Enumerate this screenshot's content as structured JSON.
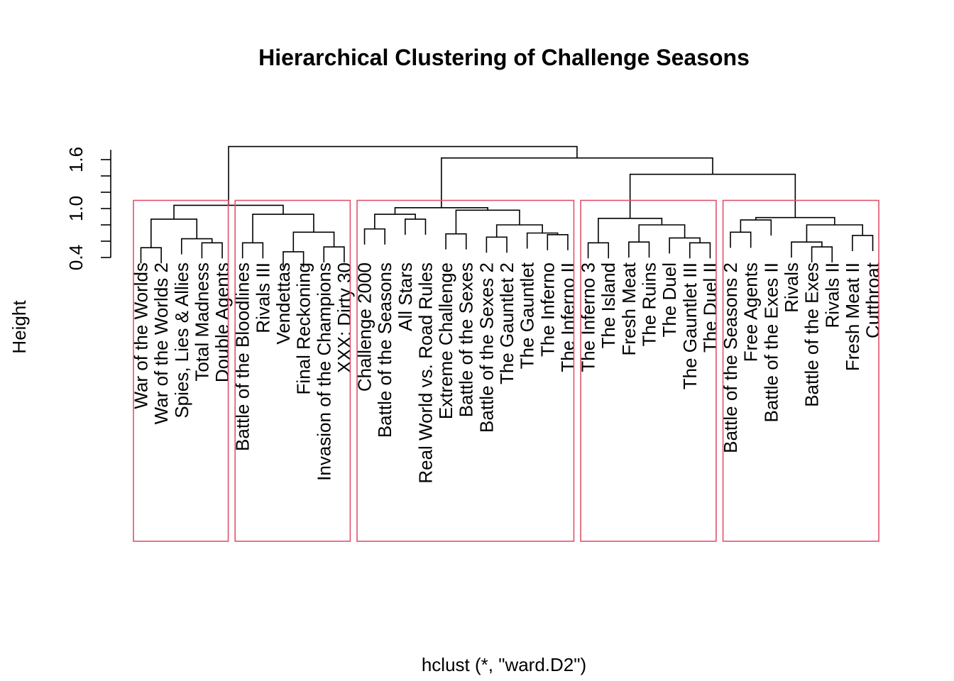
{
  "chart_data": {
    "type": "dendrogram",
    "title": "Hierarchical Clustering of Challenge Seasons",
    "ylabel": "Height",
    "xlabel": "hclust (*, \"ward.D2\")",
    "ylim": [
      0.3,
      1.75
    ],
    "yticks": [
      0.4,
      1.0,
      1.6
    ],
    "y_minor_tick_step": 0.2,
    "box_color": "#DF536B",
    "box_top_height": 1.1,
    "leaves": [
      "War of the Worlds",
      "War of the Worlds 2",
      "Spies, Lies & Allies",
      "Total Madness",
      "Double Agents",
      "Battle of the Bloodlines",
      "Rivals III",
      "Vendettas",
      "Final Reckoning",
      "Invasion of the Champions",
      "XXX: Dirty 30",
      "Challenge 2000",
      "Battle of the Seasons",
      "All Stars",
      "Real World vs. Road Rules",
      "Extreme Challenge",
      "Battle of the Sexes",
      "Battle of the Sexes 2",
      "The Gauntlet 2",
      "The Gauntlet",
      "The Inferno",
      "The Inferno II",
      "The Inferno 3",
      "The Island",
      "Fresh Meat",
      "The Ruins",
      "The Duel",
      "The Gauntlet III",
      "The Duel II",
      "Battle of the Seasons 2",
      "Free Agents",
      "Battle of the Exes II",
      "Rivals",
      "Battle of the Exes",
      "Rivals II",
      "Fresh Meat II",
      "Cutthroat"
    ],
    "merges": [
      [
        0,
        1,
        0.52
      ],
      [
        3,
        4,
        0.58
      ],
      [
        2,
        38,
        0.63
      ],
      [
        37,
        39,
        0.87
      ],
      [
        5,
        6,
        0.58
      ],
      [
        7,
        8,
        0.47
      ],
      [
        9,
        10,
        0.53
      ],
      [
        42,
        43,
        0.71
      ],
      [
        41,
        44,
        0.93
      ],
      [
        40,
        45,
        1.04
      ],
      [
        11,
        12,
        0.75
      ],
      [
        13,
        14,
        0.87
      ],
      [
        47,
        48,
        0.93
      ],
      [
        15,
        16,
        0.69
      ],
      [
        17,
        18,
        0.65
      ],
      [
        20,
        21,
        0.68
      ],
      [
        19,
        52,
        0.7
      ],
      [
        51,
        53,
        0.8
      ],
      [
        50,
        54,
        0.98
      ],
      [
        49,
        55,
        1.01
      ],
      [
        22,
        23,
        0.58
      ],
      [
        24,
        25,
        0.59
      ],
      [
        27,
        28,
        0.58
      ],
      [
        26,
        59,
        0.64
      ],
      [
        58,
        60,
        0.8
      ],
      [
        57,
        61,
        0.88
      ],
      [
        29,
        30,
        0.71
      ],
      [
        31,
        63,
        0.86
      ],
      [
        33,
        34,
        0.53
      ],
      [
        32,
        65,
        0.59
      ],
      [
        35,
        36,
        0.67
      ],
      [
        66,
        67,
        0.8
      ],
      [
        64,
        68,
        0.89
      ],
      [
        62,
        69,
        1.42
      ],
      [
        56,
        70,
        1.62
      ],
      [
        46,
        71,
        1.76
      ]
    ],
    "clusters": [
      [
        0,
        4
      ],
      [
        5,
        10
      ],
      [
        11,
        21
      ],
      [
        22,
        28
      ],
      [
        29,
        36
      ]
    ]
  }
}
